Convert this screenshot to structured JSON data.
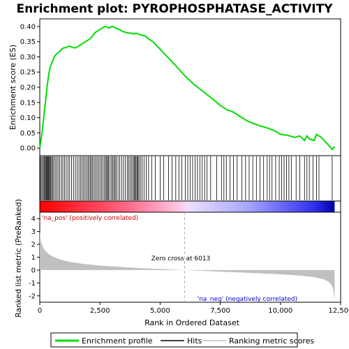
{
  "chart_data": {
    "type": "line",
    "title": "Enrichment plot: PYROPHOSPHATASE_ACTIVITY",
    "xlabel": "Rank in Ordered Dataset",
    "ylabel_top": "Enrichment score (ES)",
    "ylabel_bottom": "Ranked list metric (PreRanked)",
    "xlim": [
      0,
      12500
    ],
    "es_ylim": [
      -0.025,
      0.425
    ],
    "metric_ylim": [
      -2.5,
      4.5
    ],
    "x_ticks": [
      0,
      2500,
      5000,
      7500,
      10000,
      12500
    ],
    "x_tick_labels": [
      "0",
      "2,500",
      "5,000",
      "7,500",
      "10,000",
      "12,500"
    ],
    "es_ticks": [
      0.0,
      0.05,
      0.1,
      0.15,
      0.2,
      0.25,
      0.3,
      0.35,
      0.4
    ],
    "es_tick_labels": [
      "0.00",
      "0.05",
      "0.10",
      "0.15",
      "0.20",
      "0.25",
      "0.30",
      "0.35",
      "0.40"
    ],
    "metric_ticks": [
      -2,
      -1,
      0,
      1,
      2,
      3,
      4
    ],
    "metric_tick_labels": [
      "-2",
      "-1",
      "0",
      "1",
      "2",
      "3",
      "4"
    ],
    "total_genes": 12250,
    "zero_cross_rank": 6013,
    "zero_cross_label": "Zero cross at 6013",
    "pos_label": "'na_pos' (positively correlated)",
    "neg_label": "'na_neg' (negatively correlated)",
    "colors": {
      "es_line": "#00dd00",
      "hits": "#000000",
      "metric_fill": "#c0c0c0",
      "pos_label": "#cc0000",
      "neg_label": "#0000cc",
      "zero_line": "#aaaaaa"
    },
    "series": [
      {
        "name": "Enrichment profile",
        "x": [
          0,
          50,
          100,
          150,
          200,
          250,
          300,
          350,
          400,
          450,
          500,
          550,
          600,
          700,
          800,
          900,
          1000,
          1100,
          1200,
          1300,
          1400,
          1500,
          1600,
          1700,
          1800,
          1900,
          2000,
          2100,
          2200,
          2300,
          2400,
          2500,
          2600,
          2700,
          2800,
          2900,
          3000,
          3100,
          3200,
          3300,
          3400,
          3500,
          3600,
          3700,
          3800,
          3900,
          4000,
          4100,
          4200,
          4300,
          4400,
          4500,
          4700,
          5000,
          5300,
          5600,
          6000,
          6400,
          6800,
          7200,
          7500,
          7800,
          8000,
          8300,
          8600,
          8900,
          9200,
          9500,
          9800,
          10000,
          10300,
          10600,
          10800,
          11000,
          11100,
          11200,
          11400,
          11500,
          11700,
          11900,
          12050,
          12150,
          12250
        ],
        "y": [
          0.0,
          0.025,
          0.055,
          0.09,
          0.13,
          0.16,
          0.2,
          0.23,
          0.255,
          0.27,
          0.28,
          0.29,
          0.3,
          0.31,
          0.315,
          0.325,
          0.33,
          0.33,
          0.335,
          0.333,
          0.33,
          0.33,
          0.335,
          0.34,
          0.345,
          0.35,
          0.355,
          0.36,
          0.37,
          0.38,
          0.385,
          0.39,
          0.395,
          0.4,
          0.398,
          0.395,
          0.4,
          0.397,
          0.393,
          0.39,
          0.385,
          0.382,
          0.38,
          0.378,
          0.378,
          0.375,
          0.378,
          0.375,
          0.372,
          0.37,
          0.368,
          0.36,
          0.35,
          0.325,
          0.3,
          0.275,
          0.24,
          0.21,
          0.185,
          0.16,
          0.14,
          0.125,
          0.12,
          0.105,
          0.09,
          0.08,
          0.072,
          0.065,
          0.055,
          0.045,
          0.042,
          0.035,
          0.04,
          0.025,
          0.04,
          0.03,
          0.025,
          0.045,
          0.035,
          0.018,
          0.005,
          -0.005,
          0.005
        ]
      }
    ],
    "hit_ranks": [
      20,
      60,
      110,
      150,
      190,
      230,
      260,
      290,
      320,
      350,
      380,
      410,
      450,
      490,
      530,
      580,
      640,
      700,
      760,
      830,
      900,
      960,
      1030,
      1100,
      1170,
      1240,
      1320,
      1400,
      1480,
      1560,
      1630,
      1700,
      1760,
      1820,
      1880,
      1940,
      2000,
      2050,
      2100,
      2150,
      2200,
      2260,
      2320,
      2380,
      2440,
      2500,
      2560,
      2620,
      2680,
      2740,
      2780,
      2820,
      2860,
      2920,
      2980,
      3030,
      3080,
      3130,
      3180,
      3250,
      3320,
      3400,
      3480,
      3560,
      3640,
      3700,
      3760,
      3820,
      3880,
      3920,
      3960,
      4000,
      4040,
      4080,
      4120,
      4180,
      4250,
      4330,
      4420,
      4520,
      4650,
      4800,
      5000,
      5150,
      5350,
      5500,
      5650,
      5780,
      5900,
      6050,
      6150,
      6250,
      6350,
      6450,
      6550,
      6650,
      6750,
      6850,
      6950,
      7100,
      7350,
      7550,
      7650,
      7750,
      7900,
      8050,
      8200,
      8400,
      8550,
      8700,
      8850,
      9000,
      9150,
      9300,
      9450,
      9550,
      9650,
      9800,
      9950,
      10050,
      10150,
      10250,
      10350,
      10450,
      10650,
      10800,
      11000,
      11100,
      11200,
      11350,
      11500,
      11600,
      12150
    ],
    "metric_curve": {
      "x": [
        0,
        30,
        80,
        150,
        250,
        400,
        600,
        900,
        1300,
        1800,
        2500,
        3300,
        4200,
        5200,
        6013,
        7000,
        8000,
        9000,
        10000,
        10800,
        11400,
        11800,
        12000,
        12100,
        12180,
        12230,
        12250
      ],
      "y": [
        3.0,
        2.4,
        2.0,
        1.7,
        1.45,
        1.2,
        1.0,
        0.8,
        0.62,
        0.48,
        0.35,
        0.25,
        0.15,
        0.07,
        0.0,
        -0.08,
        -0.16,
        -0.24,
        -0.33,
        -0.42,
        -0.55,
        -0.72,
        -0.9,
        -1.1,
        -1.4,
        -2.0,
        -2.4
      ]
    }
  },
  "legend": {
    "items": [
      {
        "label": "Enrichment profile",
        "color": "#00dd00"
      },
      {
        "label": "Hits",
        "color": "#000000"
      },
      {
        "label": "Ranking metric scores",
        "color": "#c0c0c0"
      }
    ]
  }
}
